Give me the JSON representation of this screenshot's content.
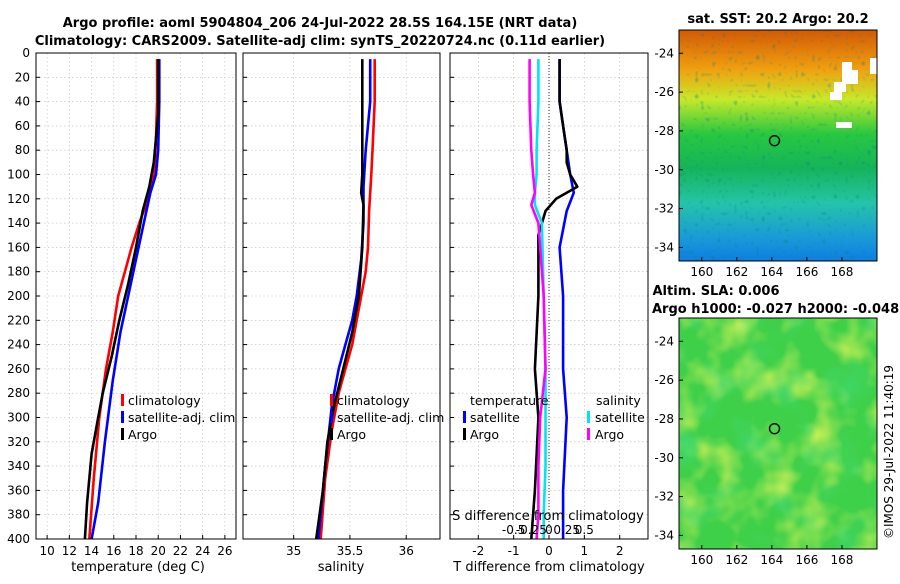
{
  "chart_data": [
    {
      "type": "line",
      "panel": "temperature",
      "title": "Argo profile: aoml 5904804_206 24-Jul-2022 28.5S 164.15E (NRT data)",
      "subtitle": "Climatology: CARS2009. Satellite-adj clim: synTS_20220724.nc (0.11d earlier)",
      "xlabel": "temperature (deg C)",
      "xlim": [
        9,
        27
      ],
      "xticks": [
        10,
        12,
        14,
        16,
        18,
        20,
        22,
        24,
        26
      ],
      "ylim": [
        0,
        400
      ],
      "yticks": [
        0,
        20,
        40,
        60,
        80,
        100,
        120,
        140,
        160,
        180,
        200,
        220,
        240,
        260,
        280,
        300,
        320,
        340,
        360,
        380,
        400
      ],
      "y_reversed": true,
      "legend": [
        "climatology",
        "satellite-adj. clim",
        "Argo"
      ],
      "series": [
        {
          "name": "climatology",
          "color": "#ff0000",
          "x": [
            19.9,
            19.9,
            19.8,
            19.7,
            19.6,
            19.4,
            19.1,
            18.3,
            17.6,
            17.0,
            16.4,
            15.9,
            15.3,
            14.7,
            14.2,
            13.8
          ],
          "y": [
            5,
            40,
            70,
            90,
            100,
            110,
            120,
            140,
            160,
            180,
            200,
            230,
            260,
            300,
            350,
            400
          ]
        },
        {
          "name": "satellite-adj. clim",
          "color": "#0000ff",
          "x": [
            20.1,
            20.1,
            20.0,
            19.8,
            19.3,
            18.7,
            18.0,
            17.3,
            16.6,
            15.9,
            15.2,
            14.6,
            14.0
          ],
          "y": [
            5,
            40,
            80,
            100,
            115,
            140,
            170,
            200,
            230,
            270,
            320,
            370,
            400
          ]
        },
        {
          "name": "Argo",
          "color": "#000000",
          "x": [
            20.0,
            20.0,
            19.6,
            19.2,
            18.6,
            18.0,
            17.3,
            16.5,
            15.8,
            15.0,
            14.6,
            14.0,
            13.6,
            13.4
          ],
          "y": [
            5,
            50,
            90,
            110,
            130,
            160,
            190,
            220,
            250,
            280,
            300,
            330,
            370,
            400
          ]
        }
      ]
    },
    {
      "type": "line",
      "panel": "salinity",
      "xlabel": "salinity",
      "xlim": [
        34.55,
        36.3
      ],
      "xticks": [
        35,
        35.5,
        36
      ],
      "xticklabels": [
        "35",
        "35.5",
        "36"
      ],
      "ylim": [
        0,
        400
      ],
      "y_reversed": true,
      "legend": [
        "climatology",
        "satellite-adj. clim",
        "Argo"
      ],
      "series": [
        {
          "name": "climatology",
          "color": "#ff0000",
          "x": [
            35.72,
            35.72,
            35.7,
            35.69,
            35.67,
            35.66,
            35.64,
            35.6,
            35.56,
            35.52,
            35.46,
            35.4,
            35.34,
            35.28,
            35.24
          ],
          "y": [
            5,
            40,
            80,
            100,
            130,
            160,
            180,
            200,
            220,
            240,
            260,
            280,
            310,
            350,
            400
          ]
        },
        {
          "name": "satellite-adj. clim",
          "color": "#0000ff",
          "x": [
            35.68,
            35.68,
            35.64,
            35.62,
            35.62,
            35.6,
            35.56,
            35.52,
            35.46,
            35.4,
            35.34,
            35.28,
            35.22
          ],
          "y": [
            5,
            40,
            80,
            110,
            140,
            170,
            200,
            220,
            240,
            260,
            290,
            340,
            400
          ]
        },
        {
          "name": "Argo",
          "color": "#000000",
          "x": [
            35.61,
            35.61,
            35.61,
            35.6,
            35.62,
            35.61,
            35.58,
            35.52,
            35.44,
            35.36,
            35.3,
            35.26,
            35.2
          ],
          "y": [
            5,
            60,
            100,
            115,
            125,
            160,
            200,
            230,
            260,
            290,
            320,
            360,
            400
          ]
        }
      ]
    },
    {
      "type": "line",
      "panel": "difference",
      "xlabel": "T difference from climatology",
      "xlabel_top": "S difference from climatology",
      "xlim": [
        -2.8,
        2.8
      ],
      "xticks": [
        -2,
        -1,
        0,
        1,
        2
      ],
      "sxticklabels": [
        "-0.5",
        "-0.25",
        "0",
        "0.25",
        "0.5"
      ],
      "ylim": [
        0,
        400
      ],
      "y_reversed": true,
      "legend_titles": [
        "temperature",
        "salinity"
      ],
      "legend": [
        "satellite",
        "Argo",
        "satellite",
        "Argo"
      ],
      "series": [
        {
          "name": "temperature satellite",
          "color": "#0000ff",
          "x": [
            0.3,
            0.3,
            0.4,
            0.5,
            0.6,
            0.7,
            0.5,
            0.3,
            0.4,
            0.4,
            0.5,
            0.4,
            0.4
          ],
          "y": [
            5,
            40,
            60,
            80,
            100,
            115,
            130,
            160,
            200,
            260,
            300,
            360,
            400
          ]
        },
        {
          "name": "temperature Argo",
          "color": "#000000",
          "x": [
            0.3,
            0.3,
            0.4,
            0.5,
            0.5,
            0.6,
            0.8,
            0.5,
            0.2,
            -0.1,
            -0.3,
            -0.3,
            -0.4,
            -0.3,
            -0.4,
            -0.5
          ],
          "y": [
            5,
            40,
            60,
            80,
            90,
            100,
            110,
            115,
            120,
            130,
            150,
            200,
            260,
            300,
            360,
            400
          ]
        },
        {
          "name": "salinity satellite",
          "color": "#00e5ee",
          "x": [
            -0.3,
            -0.3,
            -0.35,
            -0.35,
            -0.4,
            -0.4,
            -0.2,
            -0.15,
            -0.1,
            -0.1,
            -0.1,
            -0.15,
            -0.15
          ],
          "y": [
            5,
            40,
            80,
            100,
            115,
            125,
            140,
            200,
            260,
            300,
            340,
            380,
            400
          ]
        },
        {
          "name": "salinity Argo",
          "color": "#ff00ff",
          "x": [
            -0.55,
            -0.55,
            -0.5,
            -0.45,
            -0.4,
            -0.5,
            -0.3,
            -0.15,
            -0.1,
            -0.25,
            -0.3,
            -0.3,
            -0.35
          ],
          "y": [
            5,
            40,
            80,
            100,
            115,
            125,
            140,
            200,
            260,
            300,
            340,
            380,
            400
          ]
        }
      ]
    },
    {
      "type": "heatmap",
      "panel": "sst-map",
      "title": "sat. SST: 20.2 Argo: 20.2",
      "xticks": [
        160,
        162,
        164,
        166,
        168
      ],
      "yticks": [
        -24,
        -26,
        -28,
        -30,
        -32,
        -34
      ],
      "xlim": [
        158.7,
        170.0
      ],
      "ylim": [
        -34.7,
        -22.8
      ],
      "marker": [
        164.15,
        -28.5
      ]
    },
    {
      "type": "heatmap",
      "panel": "sla-map",
      "title": "Altim. SLA: 0.006",
      "subtitle": "Argo h1000: -0.027 h2000: -0.048",
      "xticks": [
        160,
        162,
        164,
        166,
        168
      ],
      "yticks": [
        -24,
        -26,
        -28,
        -30,
        -32,
        -34
      ],
      "xlim": [
        158.7,
        170.0
      ],
      "ylim": [
        -34.7,
        -22.8
      ],
      "marker": [
        164.15,
        -28.5
      ]
    }
  ],
  "credit": "©IMOS 29-Jul-2022 11:40:19"
}
